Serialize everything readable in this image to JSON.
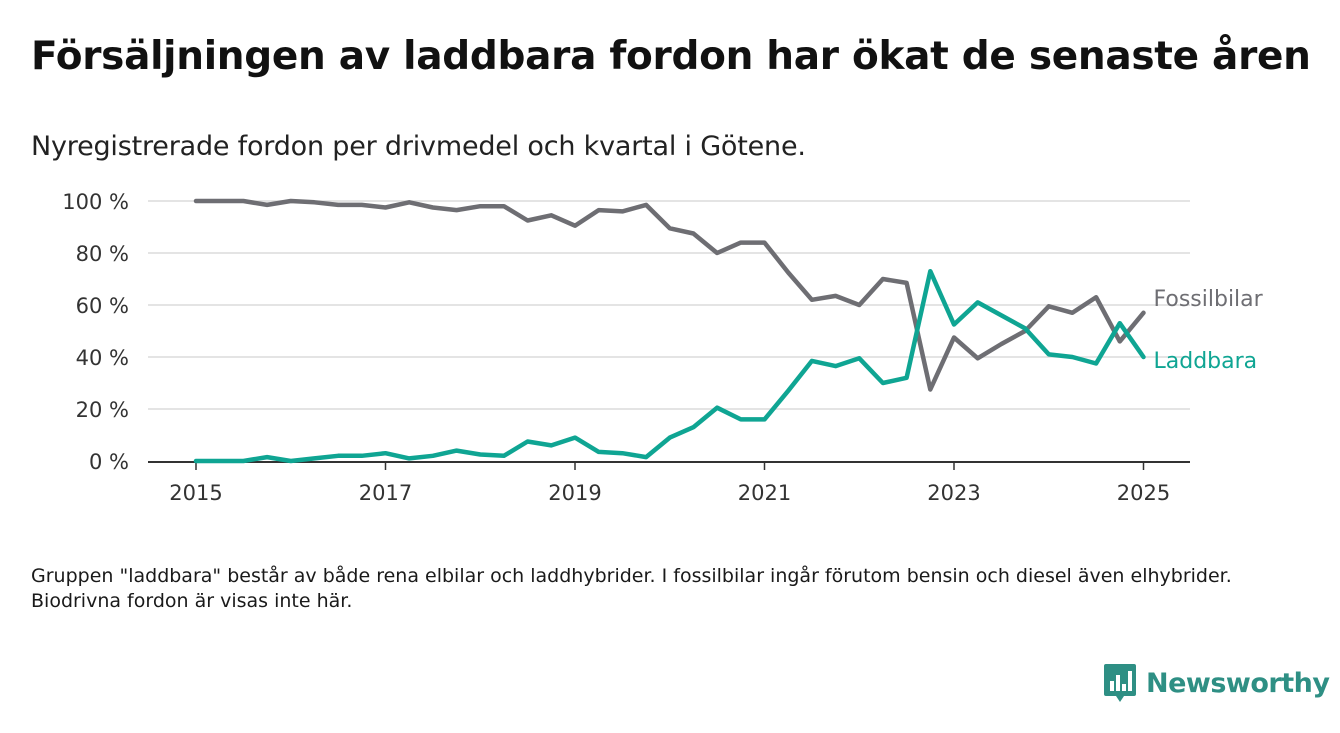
{
  "title": "Försäljningen av laddbara fordon har ökat de senaste åren",
  "subtitle": "Nyregistrerade fordon per drivmedel och kvartal i Götene.",
  "note": "Gruppen \"laddbara\" består av både rena elbilar och laddhybrider. I fossilbilar ingår förutom bensin och diesel även elhybrider. Biodrivna fordon är visas inte här.",
  "brand": {
    "name": "Newsworthy",
    "icon": "newsworthy-logo-icon",
    "color": "#2e8f84"
  },
  "chart_data": {
    "type": "line",
    "title": "Försäljningen av laddbara fordon har ökat de senaste åren",
    "subtitle": "Nyregistrerade fordon per drivmedel och kvartal i Götene.",
    "xlabel": "",
    "ylabel": "",
    "x_ticks": [
      "2015",
      "2017",
      "2019",
      "2021",
      "2023",
      "2025"
    ],
    "y_ticks": [
      "0 %",
      "20 %",
      "40 %",
      "60 %",
      "80 %",
      "100 %"
    ],
    "ylim": [
      0,
      100
    ],
    "xlim": [
      "2014-Q3",
      "2025-Q2"
    ],
    "grid": "horizontal",
    "legend": "direct labels at line ends (right)",
    "x": [
      "2015-Q1",
      "2015-Q2",
      "2015-Q3",
      "2015-Q4",
      "2016-Q1",
      "2016-Q2",
      "2016-Q3",
      "2016-Q4",
      "2017-Q1",
      "2017-Q2",
      "2017-Q3",
      "2017-Q4",
      "2018-Q1",
      "2018-Q2",
      "2018-Q3",
      "2018-Q4",
      "2019-Q1",
      "2019-Q2",
      "2019-Q3",
      "2019-Q4",
      "2020-Q1",
      "2020-Q2",
      "2020-Q3",
      "2020-Q4",
      "2021-Q1",
      "2021-Q2",
      "2021-Q3",
      "2021-Q4",
      "2022-Q1",
      "2022-Q2",
      "2022-Q3",
      "2022-Q4",
      "2023-Q1",
      "2023-Q2",
      "2023-Q3",
      "2023-Q4",
      "2024-Q1",
      "2024-Q2",
      "2024-Q3",
      "2024-Q4",
      "2025-Q1"
    ],
    "series": [
      {
        "name": "Fossilbilar",
        "color": "#6e6e73",
        "values": [
          100,
          100,
          100,
          98.5,
          100,
          99.5,
          98.5,
          98.5,
          97.5,
          99.5,
          97.5,
          96.5,
          98,
          98,
          92.5,
          94.5,
          90.5,
          96.5,
          96,
          98.5,
          89.5,
          87.5,
          80,
          84,
          84,
          72.5,
          62,
          63.5,
          60,
          70,
          68.5,
          27.5,
          47.5,
          39.5,
          45,
          50,
          59.5,
          57,
          63,
          46,
          57
        ]
      },
      {
        "name": "Laddbara",
        "color": "#0fa593",
        "values": [
          0,
          0,
          0,
          1.5,
          0,
          1,
          2,
          2,
          3,
          1,
          2,
          4,
          2.5,
          2,
          7.5,
          6,
          9,
          3.5,
          3,
          1.5,
          9,
          13,
          20.5,
          16,
          16,
          27,
          38.5,
          36.5,
          39.5,
          30,
          32,
          73,
          52.5,
          61,
          56,
          51,
          41,
          40,
          37.5,
          53,
          40
        ]
      }
    ]
  }
}
